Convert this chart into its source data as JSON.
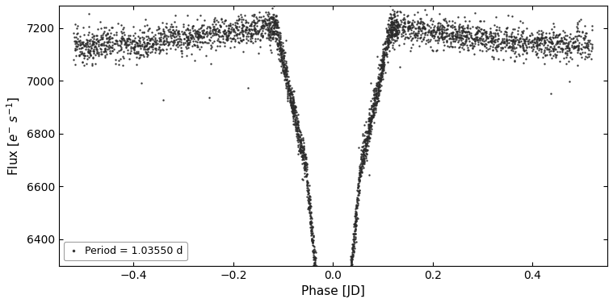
{
  "title": "",
  "xlabel": "Phase [JD]",
  "ylabel": "Flux [$e^{-}$ $s^{-1}$]",
  "period": 1.0355,
  "legend_label": "Period = 1.03550 d",
  "color": "#2b2b2b",
  "markersize": 1.5,
  "xlim": [
    -0.55,
    0.55
  ],
  "ylim": [
    6300,
    7285
  ],
  "yticks": [
    6400,
    6600,
    6800,
    7000,
    7200
  ],
  "xticks": [
    -0.4,
    -0.2,
    0.0,
    0.2,
    0.4
  ],
  "figsize": [
    7.59,
    3.76
  ],
  "dpi": 100,
  "background_color": "#ffffff",
  "n_points": 3000
}
